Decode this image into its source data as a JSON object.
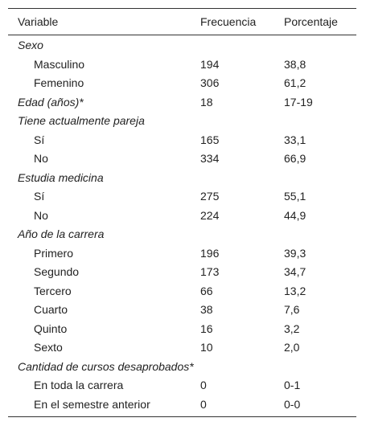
{
  "table": {
    "header": [
      "Variable",
      "Frecuencia",
      "Porcentaje"
    ],
    "sections": [
      {
        "label": "Sexo",
        "rows": [
          [
            "Masculino",
            "194",
            "38,8"
          ],
          [
            "Femenino",
            "306",
            "61,2"
          ]
        ]
      },
      {
        "label": "Edad (años)*",
        "cells": [
          "18",
          "17-19"
        ],
        "rows": []
      },
      {
        "label": "Tiene actualmente pareja",
        "rows": [
          [
            "Sí",
            "165",
            "33,1"
          ],
          [
            "No",
            "334",
            "66,9"
          ]
        ]
      },
      {
        "label": "Estudia medicina",
        "rows": [
          [
            "Sí",
            "275",
            "55,1"
          ],
          [
            "No",
            "224",
            "44,9"
          ]
        ]
      },
      {
        "label": "Año de la carrera",
        "rows": [
          [
            "Primero",
            "196",
            "39,3"
          ],
          [
            "Segundo",
            "173",
            "34,7"
          ],
          [
            "Tercero",
            "66",
            "13,2"
          ],
          [
            "Cuarto",
            "38",
            "7,6"
          ],
          [
            "Quinto",
            "16",
            "3,2"
          ],
          [
            "Sexto",
            "10",
            "2,0"
          ]
        ]
      },
      {
        "label": "Cantidad de cursos desaprobados*",
        "rows": [
          [
            "En toda la carrera",
            "0",
            "0-1"
          ],
          [
            "En el semestre anterior",
            "0",
            "0-0"
          ]
        ]
      }
    ]
  }
}
